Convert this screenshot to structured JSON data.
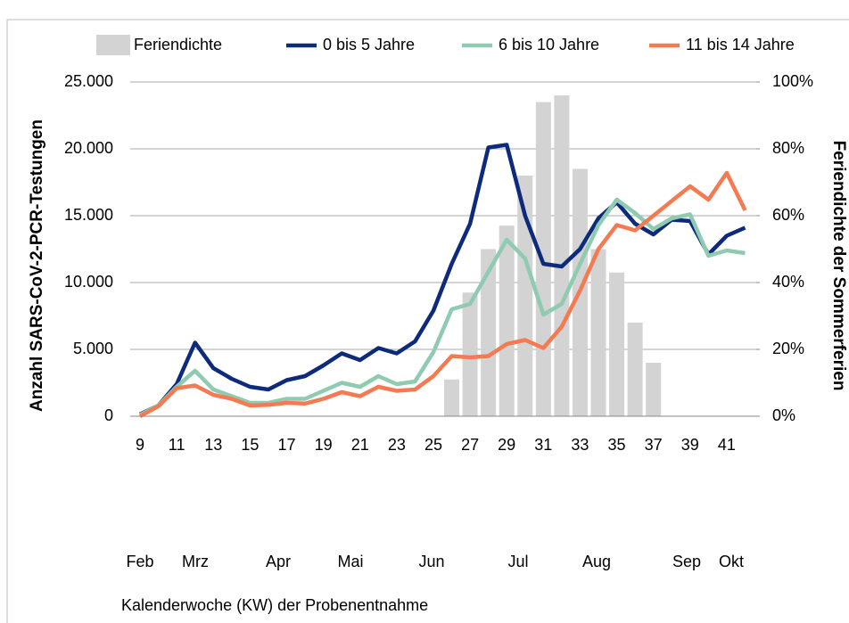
{
  "chart_data": {
    "type": "bar_line",
    "y_label": "Anzahl SARS-CoV-2-PCR-Testungen",
    "y2_label": "Feriendichte der Sommerferien",
    "x_label": "Kalenderwoche (KW) der Probenentnahme",
    "categories": [
      "9",
      null,
      "11",
      null,
      "13",
      null,
      "15",
      null,
      "17",
      null,
      "19",
      null,
      "21",
      null,
      "23",
      null,
      "25",
      null,
      "27",
      null,
      "29",
      null,
      "31",
      null,
      "33",
      null,
      "35",
      null,
      "37",
      null,
      "39",
      null,
      "41",
      null
    ],
    "x_group_labels": [
      "Feb",
      "Mrz",
      "Apr",
      "Mai",
      "Jun",
      "Jul",
      "Aug",
      "Sep",
      "Okt"
    ],
    "series": [
      {
        "name": "Feriendichte",
        "type": "bar",
        "axis": "y2",
        "color": "#d3d3d3",
        "values": [
          0,
          0,
          0,
          0,
          0,
          0,
          0,
          0,
          0,
          0,
          0,
          0,
          0,
          0,
          0,
          0,
          0,
          11,
          37,
          50,
          57,
          72,
          94,
          96,
          74,
          50,
          43,
          28,
          16,
          0,
          0,
          0,
          0,
          0
        ]
      },
      {
        "name": "0 bis 5 Jahre",
        "type": "line",
        "color": "#0d2b7a",
        "values": [
          150,
          800,
          2400,
          5500,
          3600,
          2800,
          2200,
          2000,
          2700,
          3000,
          3800,
          4700,
          4200,
          5100,
          4700,
          5600,
          7900,
          11400,
          14400,
          20100,
          20300,
          15000,
          11400,
          11200,
          12500,
          14800,
          16000,
          14400,
          13600,
          14700,
          14600,
          12100,
          13500,
          14100
        ]
      },
      {
        "name": "6 bis 10 Jahre",
        "type": "line",
        "color": "#8fcbb0",
        "values": [
          100,
          800,
          2200,
          3400,
          2000,
          1500,
          1000,
          1000,
          1300,
          1300,
          1900,
          2500,
          2200,
          3000,
          2400,
          2600,
          4800,
          8000,
          8400,
          10800,
          13200,
          11800,
          7600,
          8400,
          11400,
          14300,
          16200,
          15200,
          14000,
          14800,
          15100,
          12000,
          12400,
          12200
        ]
      },
      {
        "name": "11 bis 14 Jahre",
        "type": "line",
        "color": "#f47a52",
        "values": [
          0,
          750,
          2100,
          2300,
          1600,
          1300,
          800,
          850,
          1000,
          950,
          1300,
          1800,
          1500,
          2200,
          1900,
          2000,
          3000,
          4500,
          4400,
          4500,
          5400,
          5700,
          5100,
          6700,
          9400,
          12500,
          14300,
          13900,
          15000,
          16100,
          17200,
          16200,
          18200,
          15400
        ]
      }
    ],
    "ylim": [
      0,
      25000
    ],
    "yticks": [
      0,
      {
        "value": 5000,
        "label": "5.000"
      },
      {
        "value": 10000,
        "label": "10.000"
      },
      {
        "value": 15000,
        "label": "15.000"
      },
      {
        "value": 20000,
        "label": "20.000"
      },
      {
        "value": 25000,
        "label": "25.000"
      }
    ],
    "y2lim": [
      0,
      100
    ],
    "y2ticks": [
      {
        "value": 0,
        "label": "0%"
      },
      {
        "value": 20,
        "label": "20%"
      },
      {
        "value": 40,
        "label": "40%"
      },
      {
        "value": 60,
        "label": "60%"
      },
      {
        "value": 80,
        "label": "80%"
      },
      {
        "value": 100,
        "label": "100%"
      }
    ],
    "grid": true,
    "legend": "top"
  }
}
